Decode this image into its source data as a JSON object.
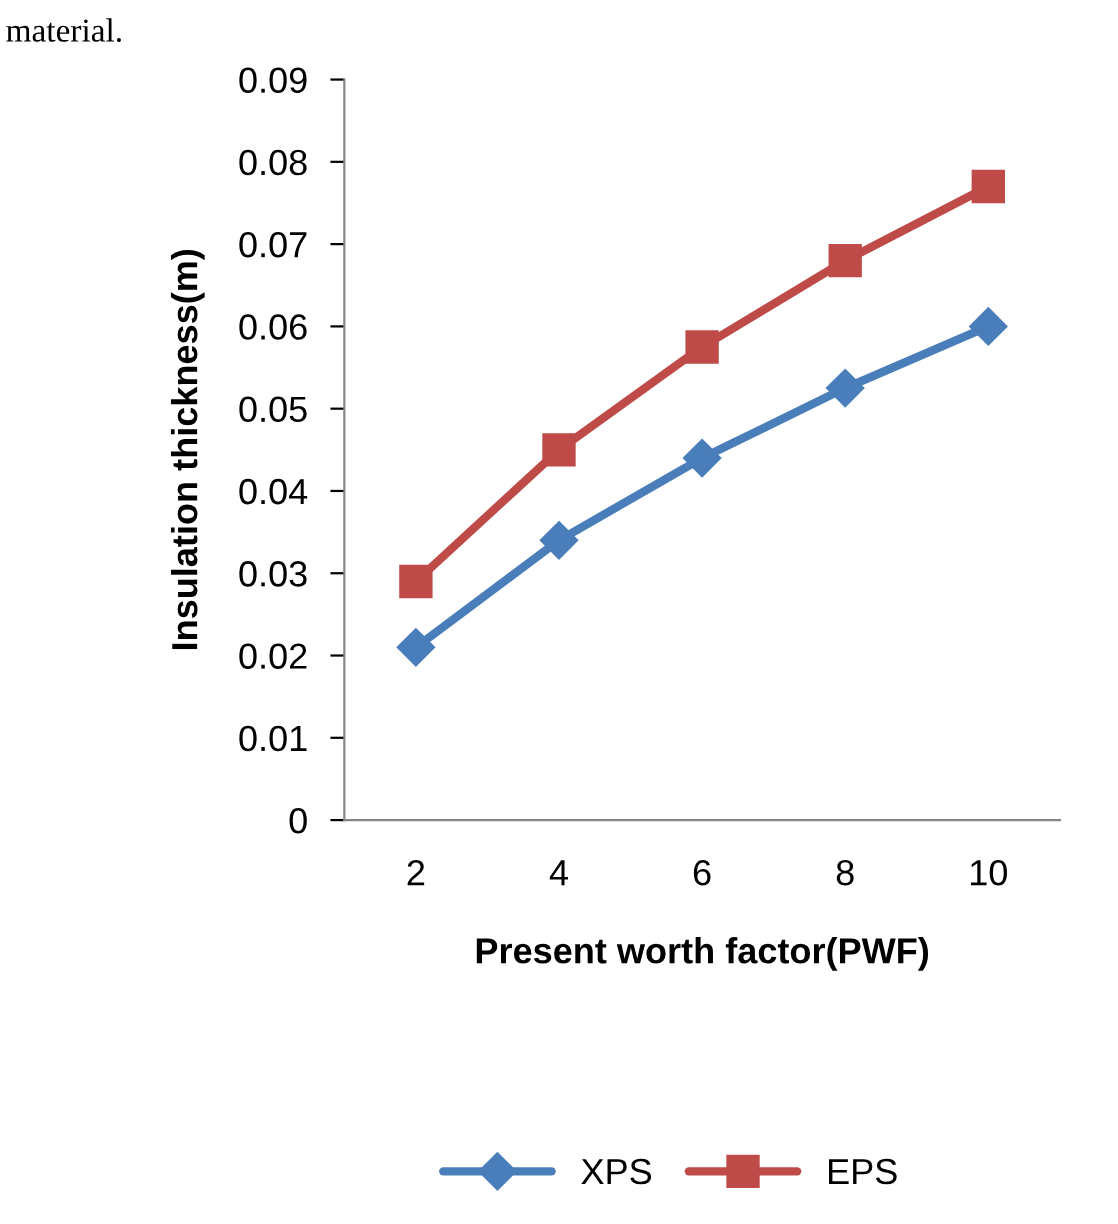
{
  "chart_data": {
    "type": "line",
    "xlabel": "Present worth factor(PWF)",
    "ylabel": "Insulation thickness(m)",
    "annotations": [
      "material."
    ],
    "categories": [
      "2",
      "4",
      "6",
      "8",
      "10"
    ],
    "series": [
      {
        "name": "XPS",
        "color": "#4a7ebb",
        "marker": "diamond",
        "values": [
          0.021,
          0.034,
          0.044,
          0.0525,
          0.06
        ]
      },
      {
        "name": "EPS",
        "color": "#be4b48",
        "marker": "square",
        "values": [
          0.029,
          0.045,
          0.0575,
          0.068,
          0.077
        ]
      }
    ],
    "ylim": [
      0,
      0.09
    ],
    "yticks": [
      0,
      0.01,
      0.02,
      0.03,
      0.04,
      0.05,
      0.06,
      0.07,
      0.08,
      0.09
    ],
    "grid": false,
    "legend": "bottom",
    "line_style": "solid"
  }
}
